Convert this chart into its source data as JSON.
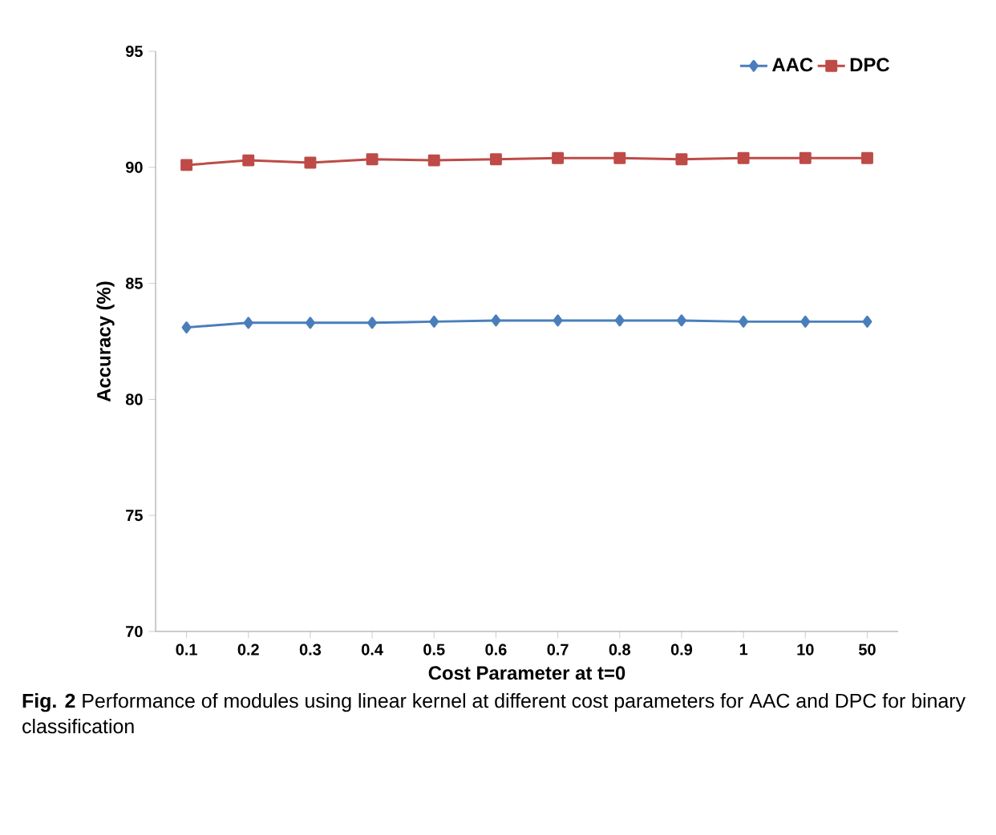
{
  "chart_data": {
    "type": "line",
    "xlabel": "Cost Parameter at t=0",
    "ylabel": "Accuracy (%)",
    "categories": [
      "0.1",
      "0.2",
      "0.3",
      "0.4",
      "0.5",
      "0.6",
      "0.7",
      "0.8",
      "0.9",
      "1",
      "10",
      "50"
    ],
    "series": [
      {
        "name": "AAC",
        "color": "#4a7ebb",
        "marker": "diamond",
        "values": [
          83.1,
          83.3,
          83.3,
          83.3,
          83.35,
          83.4,
          83.4,
          83.4,
          83.4,
          83.35,
          83.35,
          83.35
        ]
      },
      {
        "name": "DPC",
        "color": "#be4b48",
        "marker": "square",
        "values": [
          90.1,
          90.3,
          90.2,
          90.35,
          90.3,
          90.35,
          90.4,
          90.4,
          90.35,
          90.4,
          90.4,
          90.4
        ]
      }
    ],
    "ylim": [
      70,
      95
    ],
    "yticks": [
      70,
      75,
      80,
      85,
      90,
      95
    ],
    "legend": "top right",
    "grid": false,
    "annotations": [
      "**Fig. 2** Performance of modules using linear kernel at different cost parameters for AAC and DPC for binary classification"
    ]
  }
}
